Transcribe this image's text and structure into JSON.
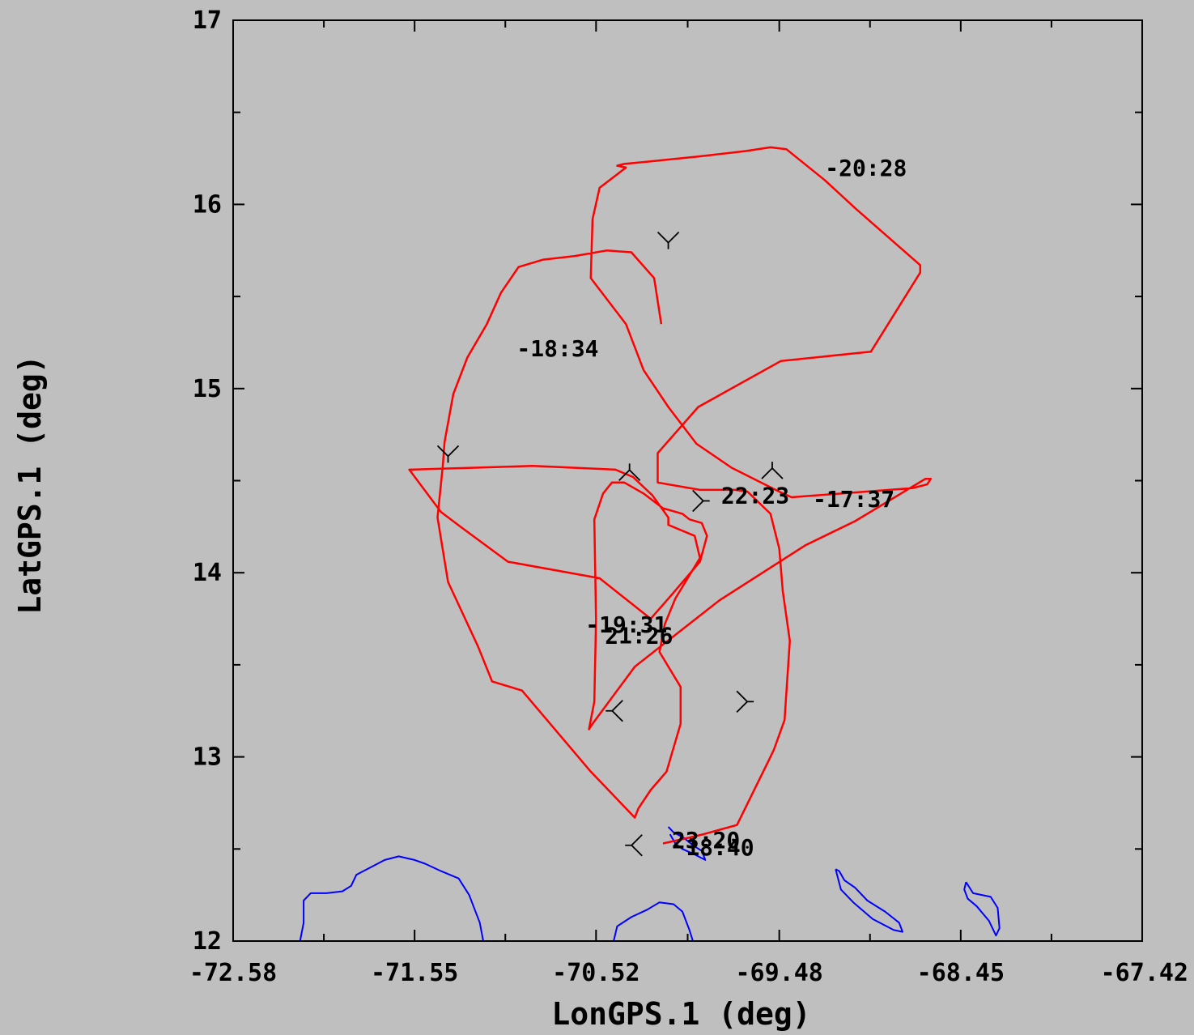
{
  "chart_data": {
    "type": "line",
    "xlabel": "LonGPS.1 (deg)",
    "ylabel": "LatGPS.1 (deg)",
    "xlim": [
      -72.58,
      -67.42
    ],
    "ylim": [
      12,
      17
    ],
    "x_ticks": [
      -72.58,
      -71.55,
      -70.52,
      -69.48,
      -68.45,
      -67.42
    ],
    "x_tick_labels": [
      "-72.58",
      "-71.55",
      "-70.52",
      "-69.48",
      "-68.45",
      "-67.42"
    ],
    "y_ticks": [
      12,
      13,
      14,
      15,
      16,
      17
    ],
    "y_tick_labels": [
      "12",
      "13",
      "14",
      "15",
      "16",
      "17"
    ],
    "grid": false,
    "colors": {
      "track": "#ff0000",
      "coastline": "#0000ff",
      "annotation": "#000000"
    },
    "series": [
      {
        "role": "flight-track",
        "x": [
          -70.14,
          -70.0,
          -69.91,
          -69.72,
          -69.54,
          -69.51,
          -69.45,
          -69.42,
          -69.46,
          -69.48,
          -69.53,
          -69.66,
          -69.73,
          -69.93,
          -70.17,
          -70.17,
          -69.94,
          -69.47,
          -68.96,
          -68.68,
          -68.68,
          -69.05,
          -69.22,
          -69.44,
          -69.53,
          -69.67,
          -69.94,
          -70.25,
          -70.36,
          -70.4,
          -70.35,
          -70.5,
          -70.54,
          -70.55,
          -70.35,
          -70.25,
          -70.11,
          -69.95,
          -69.75,
          -69.48,
          -69.41,
          -68.72,
          -68.64,
          -68.62,
          -68.65,
          -69.05,
          -69.33,
          -69.82,
          -70.3,
          -70.54,
          -70.56,
          -70.53,
          -70.52,
          -70.53,
          -70.48,
          -70.43,
          -70.36,
          -70.25,
          -70.14,
          -70.03,
          -69.99,
          -69.92,
          -69.89,
          -69.93,
          -70.1,
          -70.21,
          -70.5,
          -71.02,
          -71.29,
          -71.4,
          -71.58,
          -70.88,
          -70.41,
          -70.31,
          -70.2,
          -70.11,
          -70.11,
          -69.96,
          -69.93,
          -70.0,
          -70.07,
          -70.13,
          -70.16,
          -70.04,
          -70.04,
          -70.12,
          -70.21,
          -70.28,
          -70.3,
          -70.55,
          -70.94,
          -71.11,
          -71.19,
          -71.36,
          -71.42,
          -71.39,
          -71.38,
          -71.33,
          -71.25,
          -71.14,
          -71.06,
          -70.96,
          -70.82,
          -70.64,
          -70.46,
          -70.32,
          -70.19,
          -70.15
        ],
        "y": [
          12.53,
          12.56,
          12.58,
          12.63,
          12.98,
          13.04,
          13.2,
          13.63,
          13.9,
          14.13,
          14.32,
          14.44,
          14.45,
          14.45,
          14.49,
          14.65,
          14.9,
          15.15,
          15.2,
          15.63,
          15.67,
          15.98,
          16.13,
          16.3,
          16.31,
          16.29,
          16.26,
          16.23,
          16.22,
          16.21,
          16.2,
          16.09,
          15.92,
          15.6,
          15.35,
          15.1,
          14.9,
          14.7,
          14.57,
          14.44,
          14.41,
          14.46,
          14.48,
          14.51,
          14.51,
          14.28,
          14.15,
          13.85,
          13.49,
          13.18,
          13.15,
          13.3,
          13.75,
          14.29,
          14.43,
          14.49,
          14.49,
          14.43,
          14.35,
          14.32,
          14.29,
          14.27,
          14.2,
          14.06,
          13.87,
          13.75,
          13.97,
          14.06,
          14.25,
          14.33,
          14.56,
          14.58,
          14.56,
          14.52,
          14.42,
          14.3,
          14.26,
          14.2,
          14.08,
          13.97,
          13.86,
          13.72,
          13.57,
          13.38,
          13.18,
          12.92,
          12.82,
          12.72,
          12.67,
          12.92,
          13.36,
          13.41,
          13.6,
          13.95,
          14.3,
          14.58,
          14.71,
          14.97,
          15.17,
          15.35,
          15.52,
          15.66,
          15.7,
          15.72,
          15.75,
          15.74,
          15.6,
          15.35
        ]
      },
      {
        "role": "coastline-west",
        "x": [
          -72.2,
          -72.18,
          -72.18,
          -72.14,
          -72.05,
          -71.96,
          -71.91,
          -71.88,
          -71.8,
          -71.72,
          -71.64,
          -71.55,
          -71.49,
          -71.4,
          -71.3,
          -71.24,
          -71.18,
          -71.16
        ],
        "y": [
          12.0,
          12.1,
          12.22,
          12.26,
          12.26,
          12.27,
          12.3,
          12.36,
          12.4,
          12.44,
          12.46,
          12.44,
          12.42,
          12.38,
          12.34,
          12.25,
          12.1,
          12.0
        ]
      },
      {
        "role": "coastline-curacao",
        "x": [
          -70.11,
          -70.08,
          -70.02,
          -69.97,
          -69.92,
          -69.9,
          -69.96,
          -70.03,
          -70.07,
          -70.1
        ],
        "y": [
          12.62,
          12.59,
          12.56,
          12.52,
          12.49,
          12.44,
          12.47,
          12.5,
          12.53,
          12.58
        ]
      },
      {
        "role": "coastline-central",
        "x": [
          -70.42,
          -70.4,
          -70.32,
          -70.23,
          -70.16,
          -70.08,
          -70.03,
          -69.99,
          -69.97
        ],
        "y": [
          12.0,
          12.08,
          12.13,
          12.17,
          12.21,
          12.2,
          12.16,
          12.06,
          12.0
        ]
      },
      {
        "role": "coastline-bonaire",
        "x": [
          -69.16,
          -69.13,
          -69.06,
          -68.95,
          -68.83,
          -68.78,
          -68.8,
          -68.88,
          -68.98,
          -69.05,
          -69.11,
          -69.14,
          -69.16
        ],
        "y": [
          12.39,
          12.28,
          12.21,
          12.12,
          12.06,
          12.05,
          12.1,
          12.16,
          12.22,
          12.29,
          12.33,
          12.38,
          12.39
        ]
      },
      {
        "role": "coastline-east",
        "x": [
          -68.42,
          -68.38,
          -68.28,
          -68.24,
          -68.23,
          -68.25,
          -68.29,
          -68.36,
          -68.41,
          -68.43,
          -68.42
        ],
        "y": [
          12.32,
          12.26,
          12.24,
          12.18,
          12.07,
          12.03,
          12.11,
          12.19,
          12.23,
          12.28,
          12.32
        ]
      }
    ],
    "annotations": [
      {
        "text": "-20:28",
        "x": -69.22,
        "y": 16.2
      },
      {
        "text": "-18:34",
        "x": -70.97,
        "y": 15.22
      },
      {
        "text": "22:23",
        "x": -69.81,
        "y": 14.42
      },
      {
        "text": "-17:37",
        "x": -69.29,
        "y": 14.4
      },
      {
        "text": "-19:31",
        "x": -70.58,
        "y": 13.72
      },
      {
        "text": "21:26",
        "x": -70.47,
        "y": 13.66
      },
      {
        "text": "23:20",
        "x": -70.09,
        "y": 12.55
      },
      {
        "text": "18:40",
        "x": -70.01,
        "y": 12.51
      }
    ],
    "direction_arrows": [
      {
        "x": -70.11,
        "y": 15.81,
        "heading": "down"
      },
      {
        "x": -71.36,
        "y": 14.65,
        "heading": "down"
      },
      {
        "x": -70.33,
        "y": 14.54,
        "heading": "up"
      },
      {
        "x": -69.52,
        "y": 14.55,
        "heading": "up"
      },
      {
        "x": -69.93,
        "y": 14.39,
        "heading": "right"
      },
      {
        "x": -70.41,
        "y": 13.25,
        "heading": "left"
      },
      {
        "x": -69.68,
        "y": 13.3,
        "heading": "right"
      },
      {
        "x": -70.3,
        "y": 12.52,
        "heading": "left"
      }
    ]
  }
}
